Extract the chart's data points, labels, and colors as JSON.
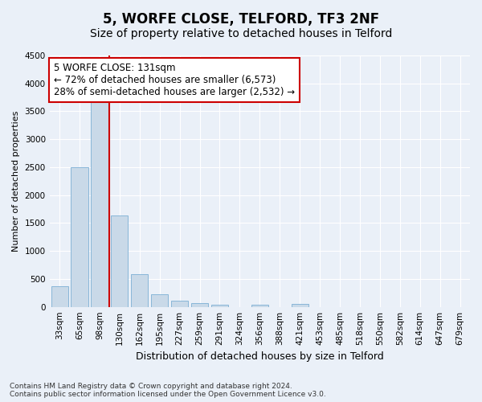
{
  "title": "5, WORFE CLOSE, TELFORD, TF3 2NF",
  "subtitle": "Size of property relative to detached houses in Telford",
  "xlabel": "Distribution of detached houses by size in Telford",
  "ylabel": "Number of detached properties",
  "categories": [
    "33sqm",
    "65sqm",
    "98sqm",
    "130sqm",
    "162sqm",
    "195sqm",
    "227sqm",
    "259sqm",
    "291sqm",
    "324sqm",
    "356sqm",
    "388sqm",
    "421sqm",
    "453sqm",
    "485sqm",
    "518sqm",
    "550sqm",
    "582sqm",
    "614sqm",
    "647sqm",
    "679sqm"
  ],
  "values": [
    370,
    2500,
    3720,
    1630,
    590,
    230,
    110,
    65,
    35,
    0,
    40,
    0,
    55,
    0,
    0,
    0,
    0,
    0,
    0,
    0,
    0
  ],
  "bar_color": "#c9d9e8",
  "bar_edge_color": "#7bafd4",
  "reference_line_color": "#cc0000",
  "annotation_line1": "5 WORFE CLOSE: 131sqm",
  "annotation_line2": "← 72% of detached houses are smaller (6,573)",
  "annotation_line3": "28% of semi-detached houses are larger (2,532) →",
  "annotation_box_color": "#ffffff",
  "annotation_box_edge_color": "#cc0000",
  "ylim": [
    0,
    4500
  ],
  "yticks": [
    0,
    500,
    1000,
    1500,
    2000,
    2500,
    3000,
    3500,
    4000,
    4500
  ],
  "footnote": "Contains HM Land Registry data © Crown copyright and database right 2024.\nContains public sector information licensed under the Open Government Licence v3.0.",
  "background_color": "#eaf0f8",
  "plot_background_color": "#eaf0f8",
  "grid_color": "#ffffff",
  "title_fontsize": 12,
  "subtitle_fontsize": 10,
  "xlabel_fontsize": 9,
  "ylabel_fontsize": 8,
  "tick_fontsize": 7.5,
  "annotation_fontsize": 8.5,
  "footnote_fontsize": 6.5
}
